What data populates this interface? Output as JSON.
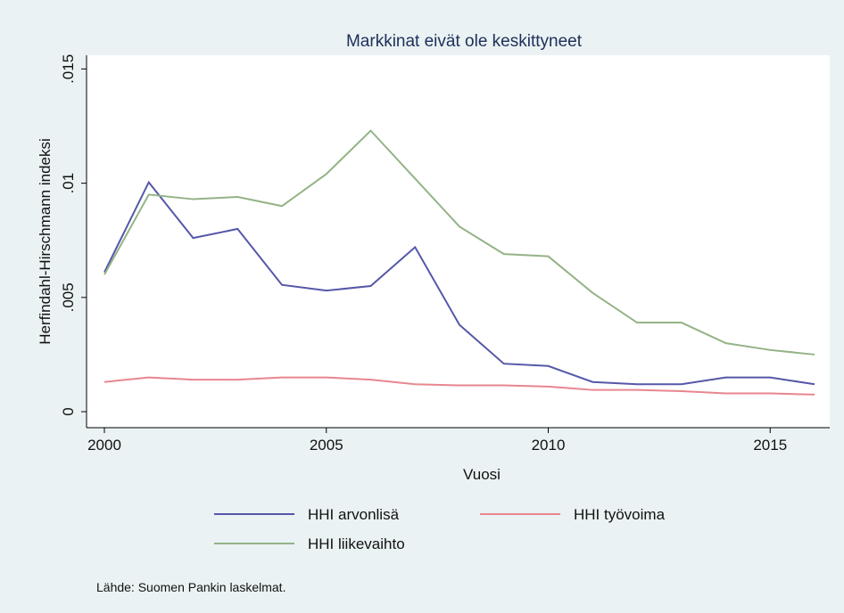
{
  "chart_data": {
    "type": "line",
    "title": "Markkinat eivät ole keskittyneet",
    "x_label": "Vuosi",
    "y_label": "Herfindahl-Hirschmann indeksi",
    "source": "Lähde: Suomen Pankin laskelmat.",
    "x": [
      2000,
      2001,
      2002,
      2003,
      2004,
      2005,
      2006,
      2007,
      2008,
      2009,
      2010,
      2011,
      2012,
      2013,
      2014,
      2015,
      2016
    ],
    "series": [
      {
        "name": "HHI arvonlisä",
        "color": "#5557a8",
        "values": [
          0.0061,
          0.01004,
          0.0076,
          0.008,
          0.00555,
          0.0053,
          0.0055,
          0.0072,
          0.0038,
          0.0021,
          0.002,
          0.0013,
          0.0012,
          0.0012,
          0.0015,
          0.0015,
          0.0012
        ]
      },
      {
        "name": "HHI työvoima",
        "color": "#e8868f",
        "values": [
          0.0013,
          0.0015,
          0.0014,
          0.0014,
          0.0015,
          0.0015,
          0.0014,
          0.0012,
          0.00115,
          0.00115,
          0.0011,
          0.00095,
          0.00095,
          0.0009,
          0.0008,
          0.0008,
          0.00075
        ]
      },
      {
        "name": "HHI liikevaihto",
        "color": "#94b386",
        "values": [
          0.006,
          0.0095,
          0.0093,
          0.0094,
          0.009,
          0.0104,
          0.0123,
          0.0102,
          0.0081,
          0.0069,
          0.0068,
          0.0052,
          0.0039,
          0.0039,
          0.003,
          0.0027,
          0.0025
        ]
      }
    ],
    "xlim": [
      2000,
      2016
    ],
    "xticks": [
      2000,
      2005,
      2010,
      2015
    ],
    "ylim": [
      -0.0007,
      0.0156
    ],
    "yticks": [
      0,
      {
        "value": 0.005,
        "label": ".005"
      },
      {
        "value": 0.01,
        "label": ".01"
      },
      {
        "value": 0.015,
        "label": ".015"
      }
    ]
  }
}
